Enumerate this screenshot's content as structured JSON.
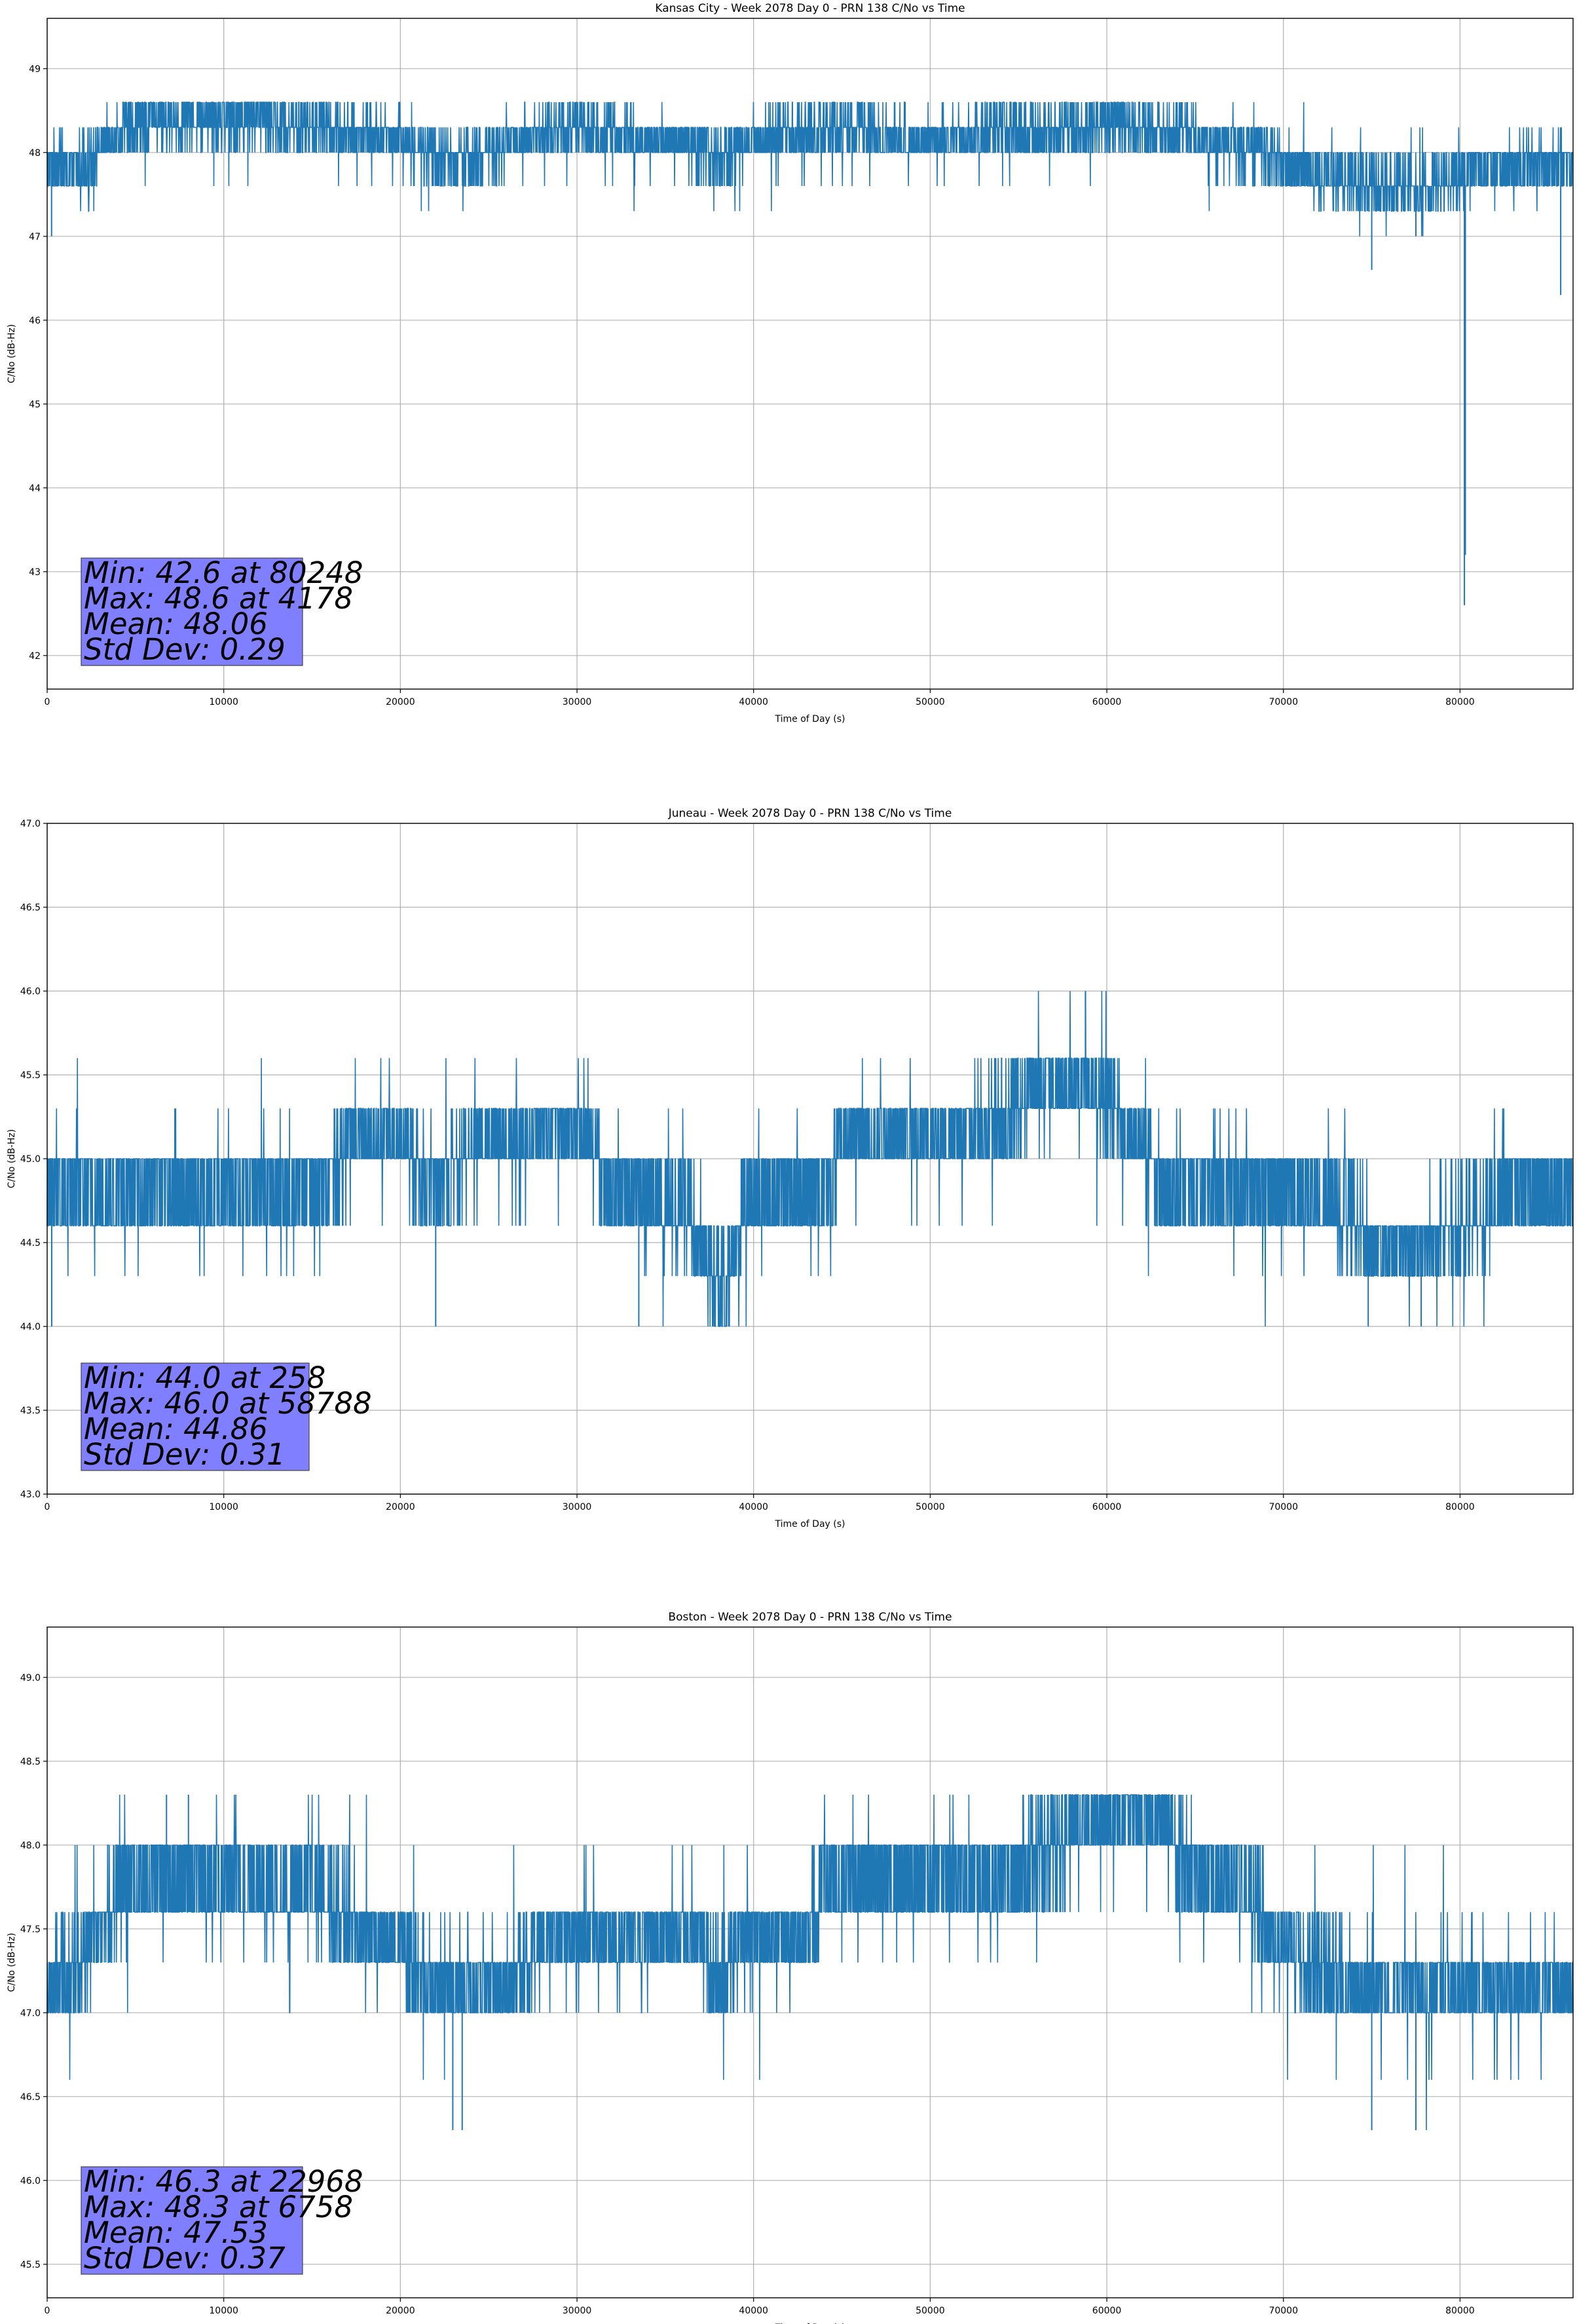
{
  "chart_data": [
    {
      "type": "line",
      "title": "Kansas City - Week 2078 Day 0 - PRN 138 C/No vs Time",
      "xlabel": "Time of Day (s)",
      "ylabel": "C/No (dB-Hz)",
      "xlim": [
        0,
        86400
      ],
      "ylim": [
        41.6,
        49.6
      ],
      "xticks": [
        0,
        10000,
        20000,
        30000,
        40000,
        50000,
        60000,
        70000,
        80000
      ],
      "yticks": [
        42,
        43,
        44,
        45,
        46,
        47,
        48,
        49
      ],
      "ytick_labels": [
        "42",
        "43",
        "44",
        "45",
        "46",
        "47",
        "48",
        "49"
      ],
      "grid": true,
      "series_color": "#1f77b4",
      "stats_lines": [
        "Min: 42.6 at 80248",
        "Max: 48.6 at 4178",
        "Mean: 48.06",
        "Std Dev: 0.29"
      ],
      "trend": [
        [
          0,
          47.9
        ],
        [
          1500,
          47.8
        ],
        [
          3000,
          48.1
        ],
        [
          4500,
          48.3
        ],
        [
          6000,
          48.4
        ],
        [
          8000,
          48.4
        ],
        [
          10000,
          48.4
        ],
        [
          12000,
          48.4
        ],
        [
          14000,
          48.3
        ],
        [
          16000,
          48.3
        ],
        [
          18000,
          48.2
        ],
        [
          20000,
          48.15
        ],
        [
          21000,
          48.05
        ],
        [
          22000,
          47.9
        ],
        [
          24000,
          47.95
        ],
        [
          26000,
          48.1
        ],
        [
          28000,
          48.2
        ],
        [
          30000,
          48.3
        ],
        [
          32000,
          48.2
        ],
        [
          34000,
          48.15
        ],
        [
          36000,
          48.1
        ],
        [
          38000,
          47.9
        ],
        [
          39500,
          48.1
        ],
        [
          41000,
          48.2
        ],
        [
          44000,
          48.25
        ],
        [
          48000,
          48.2
        ],
        [
          52000,
          48.2
        ],
        [
          56000,
          48.25
        ],
        [
          58000,
          48.3
        ],
        [
          60000,
          48.35
        ],
        [
          62000,
          48.3
        ],
        [
          64000,
          48.25
        ],
        [
          66000,
          48.1
        ],
        [
          68000,
          48.05
        ],
        [
          70000,
          47.85
        ],
        [
          72000,
          47.75
        ],
        [
          74000,
          47.6
        ],
        [
          76000,
          47.6
        ],
        [
          78000,
          47.6
        ],
        [
          80000,
          47.7
        ],
        [
          81000,
          47.8
        ],
        [
          83000,
          47.85
        ],
        [
          86400,
          47.85
        ]
      ],
      "levels": [
        42.6,
        46.3,
        46.6,
        47.0,
        47.3,
        47.6,
        48.0,
        48.3,
        48.6
      ],
      "noise": 0.32,
      "spikes": [
        [
          80248,
          42.6
        ],
        [
          80300,
          43.2
        ],
        [
          75000,
          46.6
        ],
        [
          85700,
          46.3
        ],
        [
          250,
          47.0
        ],
        [
          77500,
          47.0
        ]
      ]
    },
    {
      "type": "line",
      "title": "Juneau - Week 2078 Day 0 - PRN 138 C/No vs Time",
      "xlabel": "Time of Day (s)",
      "ylabel": "C/No (dB-Hz)",
      "xlim": [
        0,
        86400
      ],
      "ylim": [
        43.0,
        47.0
      ],
      "xticks": [
        0,
        10000,
        20000,
        30000,
        40000,
        50000,
        60000,
        70000,
        80000
      ],
      "yticks": [
        43.0,
        43.5,
        44.0,
        44.5,
        45.0,
        45.5,
        46.0,
        46.5,
        47.0
      ],
      "ytick_labels": [
        "43.0",
        "43.5",
        "44.0",
        "44.5",
        "45.0",
        "45.5",
        "46.0",
        "46.5",
        "47.0"
      ],
      "grid": true,
      "series_color": "#1f77b4",
      "stats_lines": [
        "Min: 44.0 at 258",
        "Max: 46.0 at 58788",
        "Mean: 44.86",
        "Std Dev: 0.31"
      ],
      "trend": [
        [
          0,
          44.8
        ],
        [
          4000,
          44.8
        ],
        [
          8000,
          44.8
        ],
        [
          12000,
          44.8
        ],
        [
          16000,
          44.85
        ],
        [
          17000,
          45.1
        ],
        [
          20000,
          45.1
        ],
        [
          22000,
          44.8
        ],
        [
          24000,
          45.1
        ],
        [
          28000,
          45.15
        ],
        [
          31000,
          45.1
        ],
        [
          32000,
          44.8
        ],
        [
          34000,
          44.7
        ],
        [
          36000,
          44.7
        ],
        [
          37000,
          44.5
        ],
        [
          38500,
          44.2
        ],
        [
          39500,
          44.75
        ],
        [
          42000,
          44.8
        ],
        [
          44000,
          44.8
        ],
        [
          45000,
          45.1
        ],
        [
          50000,
          45.1
        ],
        [
          53000,
          45.2
        ],
        [
          56000,
          45.4
        ],
        [
          59000,
          45.45
        ],
        [
          61000,
          45.2
        ],
        [
          62000,
          45.1
        ],
        [
          63000,
          44.8
        ],
        [
          66000,
          44.8
        ],
        [
          70000,
          44.8
        ],
        [
          73000,
          44.7
        ],
        [
          75000,
          44.5
        ],
        [
          78000,
          44.5
        ],
        [
          80000,
          44.6
        ],
        [
          83000,
          44.8
        ],
        [
          86400,
          44.8
        ]
      ],
      "levels": [
        44.0,
        44.3,
        44.6,
        45.0,
        45.3,
        45.6,
        46.0
      ],
      "noise": 0.28,
      "spikes": [
        [
          258,
          44.0
        ],
        [
          58788,
          46.0
        ],
        [
          22000,
          44.0
        ],
        [
          33500,
          44.0
        ],
        [
          74800,
          44.0
        ],
        [
          77800,
          44.0
        ]
      ]
    },
    {
      "type": "line",
      "title": "Boston - Week 2078 Day 0 - PRN 138 C/No vs Time",
      "xlabel": "Time of Day (s)",
      "ylabel": "C/No (dB-Hz)",
      "xlim": [
        0,
        86400
      ],
      "ylim": [
        45.3,
        49.3
      ],
      "xticks": [
        0,
        10000,
        20000,
        30000,
        40000,
        50000,
        60000,
        70000,
        80000
      ],
      "yticks": [
        45.5,
        46.0,
        46.5,
        47.0,
        47.5,
        48.0,
        48.5,
        49.0
      ],
      "ytick_labels": [
        "45.5",
        "46.0",
        "46.5",
        "47.0",
        "47.5",
        "48.0",
        "48.5",
        "49.0"
      ],
      "grid": true,
      "series_color": "#1f77b4",
      "stats_lines": [
        "Min: 46.3 at 22968",
        "Max: 48.3 at 6758",
        "Mean: 47.53",
        "Std Dev: 0.37"
      ],
      "trend": [
        [
          0,
          47.15
        ],
        [
          2000,
          47.3
        ],
        [
          3000,
          47.5
        ],
        [
          4000,
          47.7
        ],
        [
          6000,
          47.8
        ],
        [
          10000,
          47.8
        ],
        [
          13000,
          47.75
        ],
        [
          16000,
          47.7
        ],
        [
          17500,
          47.5
        ],
        [
          20000,
          47.45
        ],
        [
          21000,
          47.2
        ],
        [
          24000,
          47.15
        ],
        [
          27000,
          47.2
        ],
        [
          28000,
          47.45
        ],
        [
          32000,
          47.45
        ],
        [
          37000,
          47.45
        ],
        [
          37500,
          47.15
        ],
        [
          39000,
          47.4
        ],
        [
          41000,
          47.45
        ],
        [
          43000,
          47.45
        ],
        [
          44000,
          47.8
        ],
        [
          48000,
          47.8
        ],
        [
          52000,
          47.8
        ],
        [
          55000,
          47.85
        ],
        [
          57000,
          48.0
        ],
        [
          60000,
          48.15
        ],
        [
          63000,
          48.15
        ],
        [
          65000,
          47.8
        ],
        [
          68000,
          47.75
        ],
        [
          69000,
          47.5
        ],
        [
          72000,
          47.3
        ],
        [
          74000,
          47.15
        ],
        [
          78000,
          47.15
        ],
        [
          82000,
          47.15
        ],
        [
          86400,
          47.15
        ]
      ],
      "levels": [
        46.3,
        46.6,
        47.0,
        47.3,
        47.6,
        48.0,
        48.3
      ],
      "noise": 0.3,
      "spikes": [
        [
          22968,
          46.3
        ],
        [
          6758,
          48.3
        ],
        [
          75000,
          46.3
        ],
        [
          77500,
          46.3
        ],
        [
          8000,
          48.3
        ],
        [
          23500,
          46.3
        ]
      ]
    }
  ]
}
